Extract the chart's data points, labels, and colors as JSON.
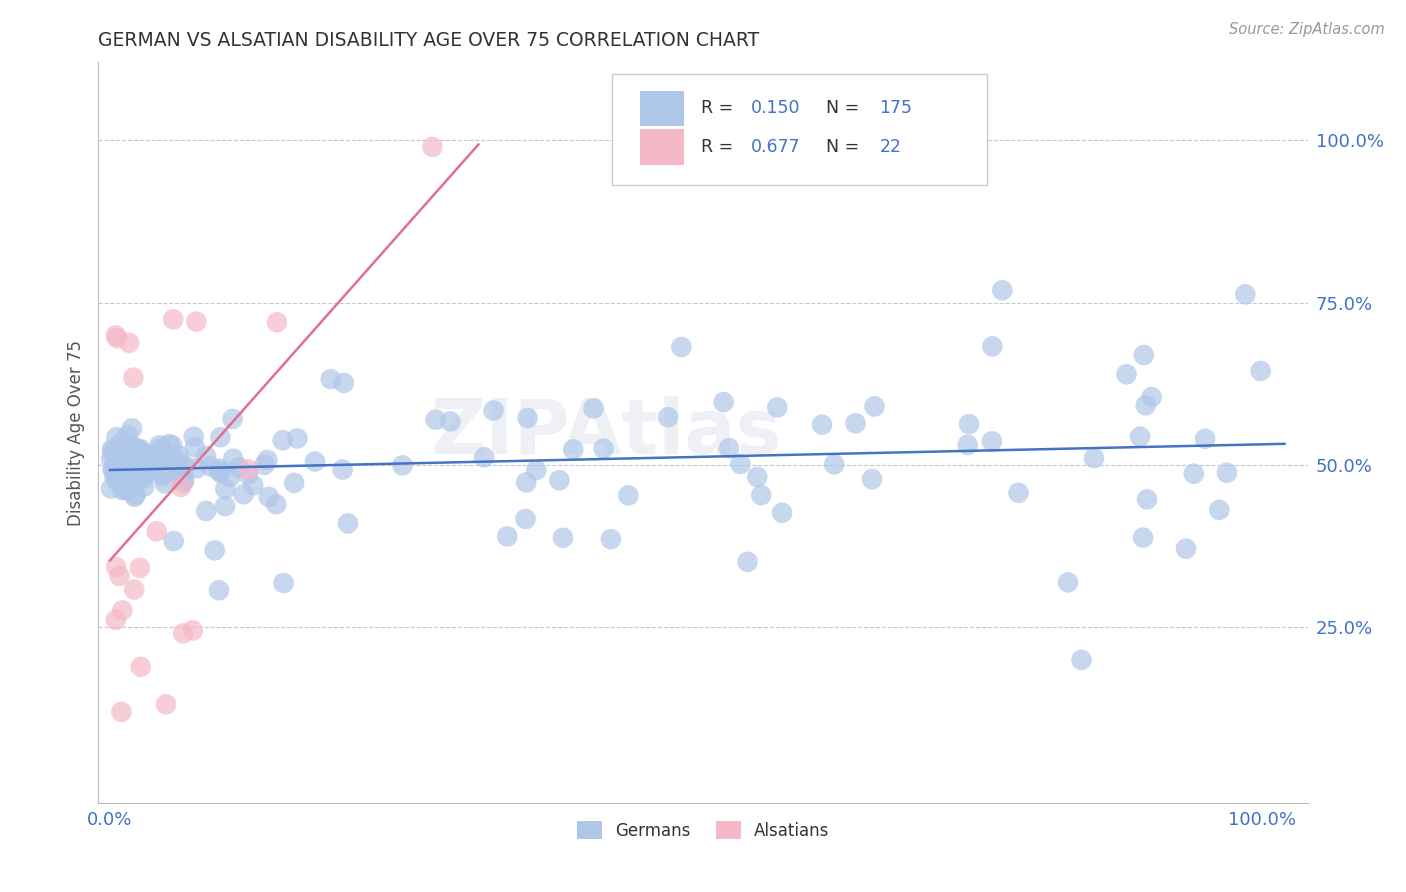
{
  "title": "GERMAN VS ALSATIAN DISABILITY AGE OVER 75 CORRELATION CHART",
  "ylabel": "Disability Age Over 75",
  "source_text": "Source: ZipAtlas.com",
  "german_R": 0.15,
  "german_N": 175,
  "alsatian_R": 0.677,
  "alsatian_N": 22,
  "german_color": "#AEC6E8",
  "alsatian_color": "#F4B8C8",
  "german_line_color": "#4472C4",
  "alsatian_line_color": "#E07090",
  "legend_label_german": "Germans",
  "legend_label_alsatian": "Alsatians",
  "watermark": "ZIPAtlas",
  "background_color": "#FFFFFF",
  "grid_color": "#CCCCCC",
  "title_color": "#333333",
  "axis_label_color": "#555555",
  "tick_color": "#4472C4",
  "legend_text_color_value": "#4472C4",
  "legend_text_color_label": "#333333"
}
